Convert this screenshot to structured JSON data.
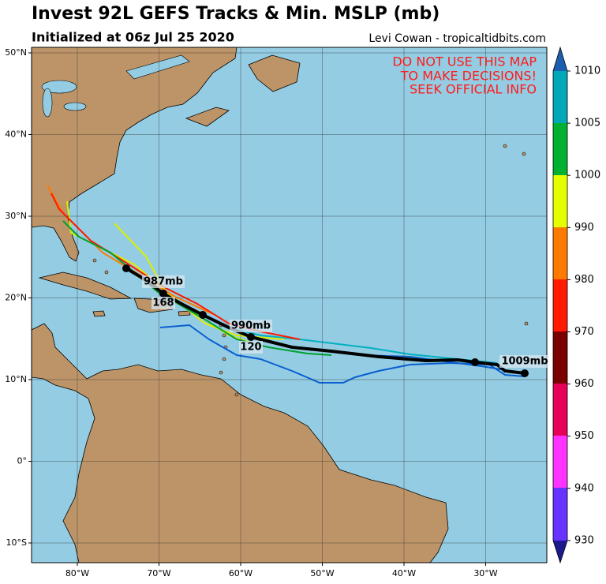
{
  "header": {
    "title": "Invest 92L GEFS Tracks & Min. MSLP (mb)",
    "subtitle": "Initialized at 06z Jul 25 2020",
    "credit": "Levi Cowan - tropicaltidbits.com"
  },
  "warning": [
    "DO NOT USE THIS MAP",
    "TO MAKE DECISIONS!",
    "SEEK OFFICIAL INFO"
  ],
  "map": {
    "labels": [
      "987mb",
      "168",
      "990mb",
      "120",
      "1009mb"
    ],
    "longitude_ticks": [
      "80°W",
      "70°W",
      "60°W",
      "50°W",
      "40°W",
      "30°W"
    ],
    "latitude_ticks": [
      "50°N",
      "40°N",
      "30°N",
      "20°N",
      "10°N",
      "0°",
      "10°S"
    ]
  },
  "colorbar": {
    "ticks": [
      1010,
      1005,
      1000,
      990,
      980,
      970,
      960,
      950,
      940,
      930
    ]
  }
}
